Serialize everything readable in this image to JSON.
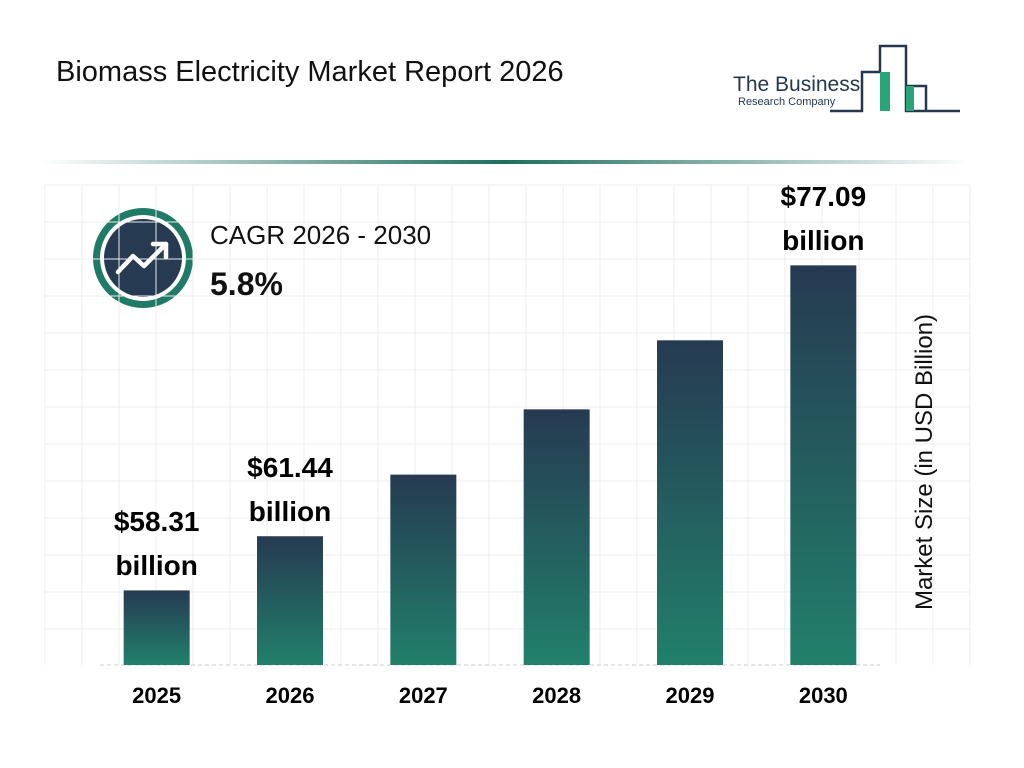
{
  "chart_data": {
    "type": "bar",
    "title": "Biomass Electricity Market Report 2026",
    "logo": {
      "line1": "The Business",
      "line2": "Research Company"
    },
    "cagr": {
      "label": "CAGR 2026 - 2030",
      "value": "5.8%"
    },
    "y_label": "Market Size (in USD Billion)",
    "categories": [
      "2025",
      "2026",
      "2027",
      "2028",
      "2029",
      "2030"
    ],
    "values": [
      58.31,
      61.44,
      65.0,
      68.77,
      72.76,
      77.09
    ],
    "value_labels": [
      "$58.31 billion",
      "$61.44 billion",
      null,
      null,
      null,
      "$77.09 billion"
    ],
    "ylim": [
      54,
      80
    ],
    "grid": true,
    "color_top": "#263a52",
    "color_bottom": "#21806a"
  }
}
